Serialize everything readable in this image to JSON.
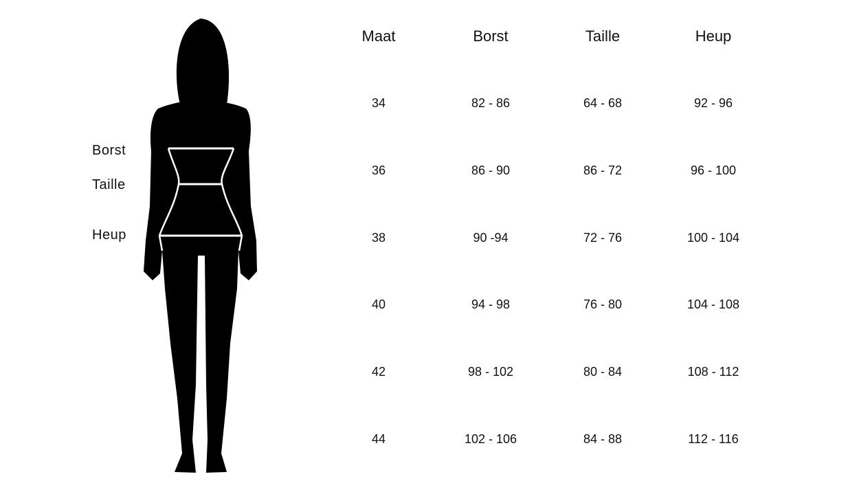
{
  "figure": {
    "labels": [
      "Borst",
      "Taille",
      "Heup"
    ],
    "silhouette_color": "#000000",
    "line_color": "#ffffff"
  },
  "table": {
    "headers": [
      "Maat",
      "Borst",
      "Taille",
      "Heup"
    ],
    "rows": [
      [
        "34",
        "82 - 86",
        "64 - 68",
        "92 - 96"
      ],
      [
        "36",
        "86 - 90",
        "86 - 72",
        "96 - 100"
      ],
      [
        "38",
        "90 -94",
        "72 - 76",
        "100 - 104"
      ],
      [
        "40",
        "94 - 98",
        "76 - 80",
        "104 - 108"
      ],
      [
        "42",
        "98 - 102",
        "80 - 84",
        "108 - 112"
      ],
      [
        "44",
        "102 - 106",
        "84 - 88",
        "112 - 116"
      ]
    ]
  }
}
